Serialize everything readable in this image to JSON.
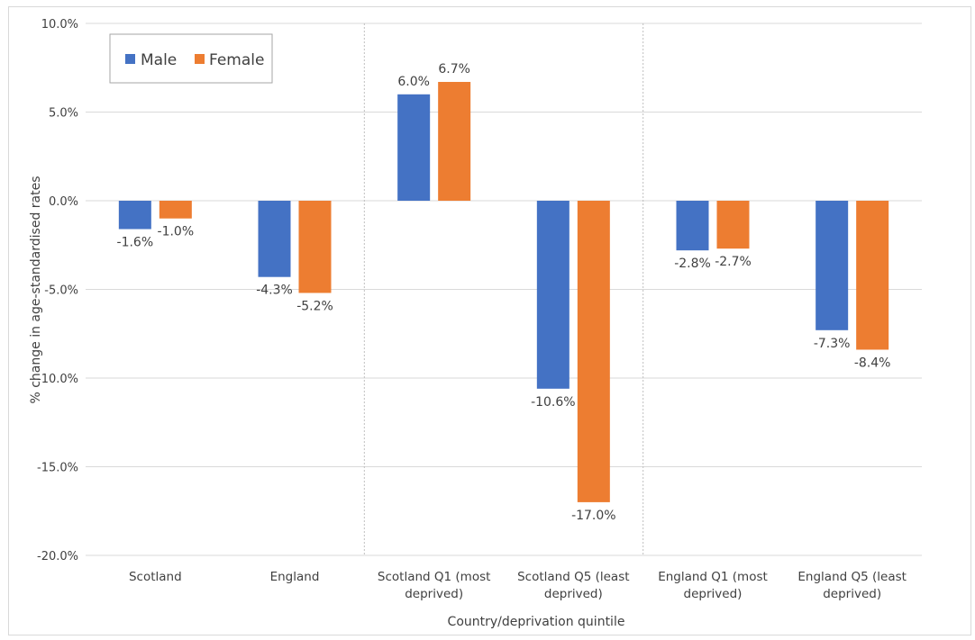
{
  "chart_data": {
    "type": "bar",
    "categories": [
      [
        "Scotland"
      ],
      [
        "England"
      ],
      [
        "Scotland Q1 (most",
        "deprived)"
      ],
      [
        "Scotland Q5 (least",
        "deprived)"
      ],
      [
        "England Q1 (most",
        "deprived)"
      ],
      [
        "England Q5 (least",
        "deprived)"
      ]
    ],
    "series": [
      {
        "name": "Male",
        "color": "#4472c4",
        "values": [
          -1.6,
          -4.3,
          6.0,
          -10.6,
          -2.8,
          -7.3
        ],
        "labels": [
          "-1.6%",
          "-4.3%",
          "6.0%",
          "-10.6%",
          "-2.8%",
          "-7.3%"
        ]
      },
      {
        "name": "Female",
        "color": "#ed7d31",
        "values": [
          -1.0,
          -5.2,
          6.7,
          -17.0,
          -2.7,
          -8.4
        ],
        "labels": [
          "-1.0%",
          "-5.2%",
          "6.7%",
          "-17.0%",
          "-2.7%",
          "-8.4%"
        ]
      }
    ],
    "y_ticks": [
      10,
      5,
      0,
      -5,
      -10,
      -15,
      -20
    ],
    "y_tick_labels": [
      "10.0%",
      "5.0%",
      "0.0%",
      "-5.0%",
      "-10.0%",
      "-15.0%",
      "-20.0%"
    ],
    "ylim": [
      -20,
      10
    ],
    "xlabel": "Country/deprivation  quintile",
    "ylabel": "% change in age-standardised rates",
    "grid": true,
    "legend": "top-left",
    "group_dividers_after": [
      2,
      4
    ]
  }
}
